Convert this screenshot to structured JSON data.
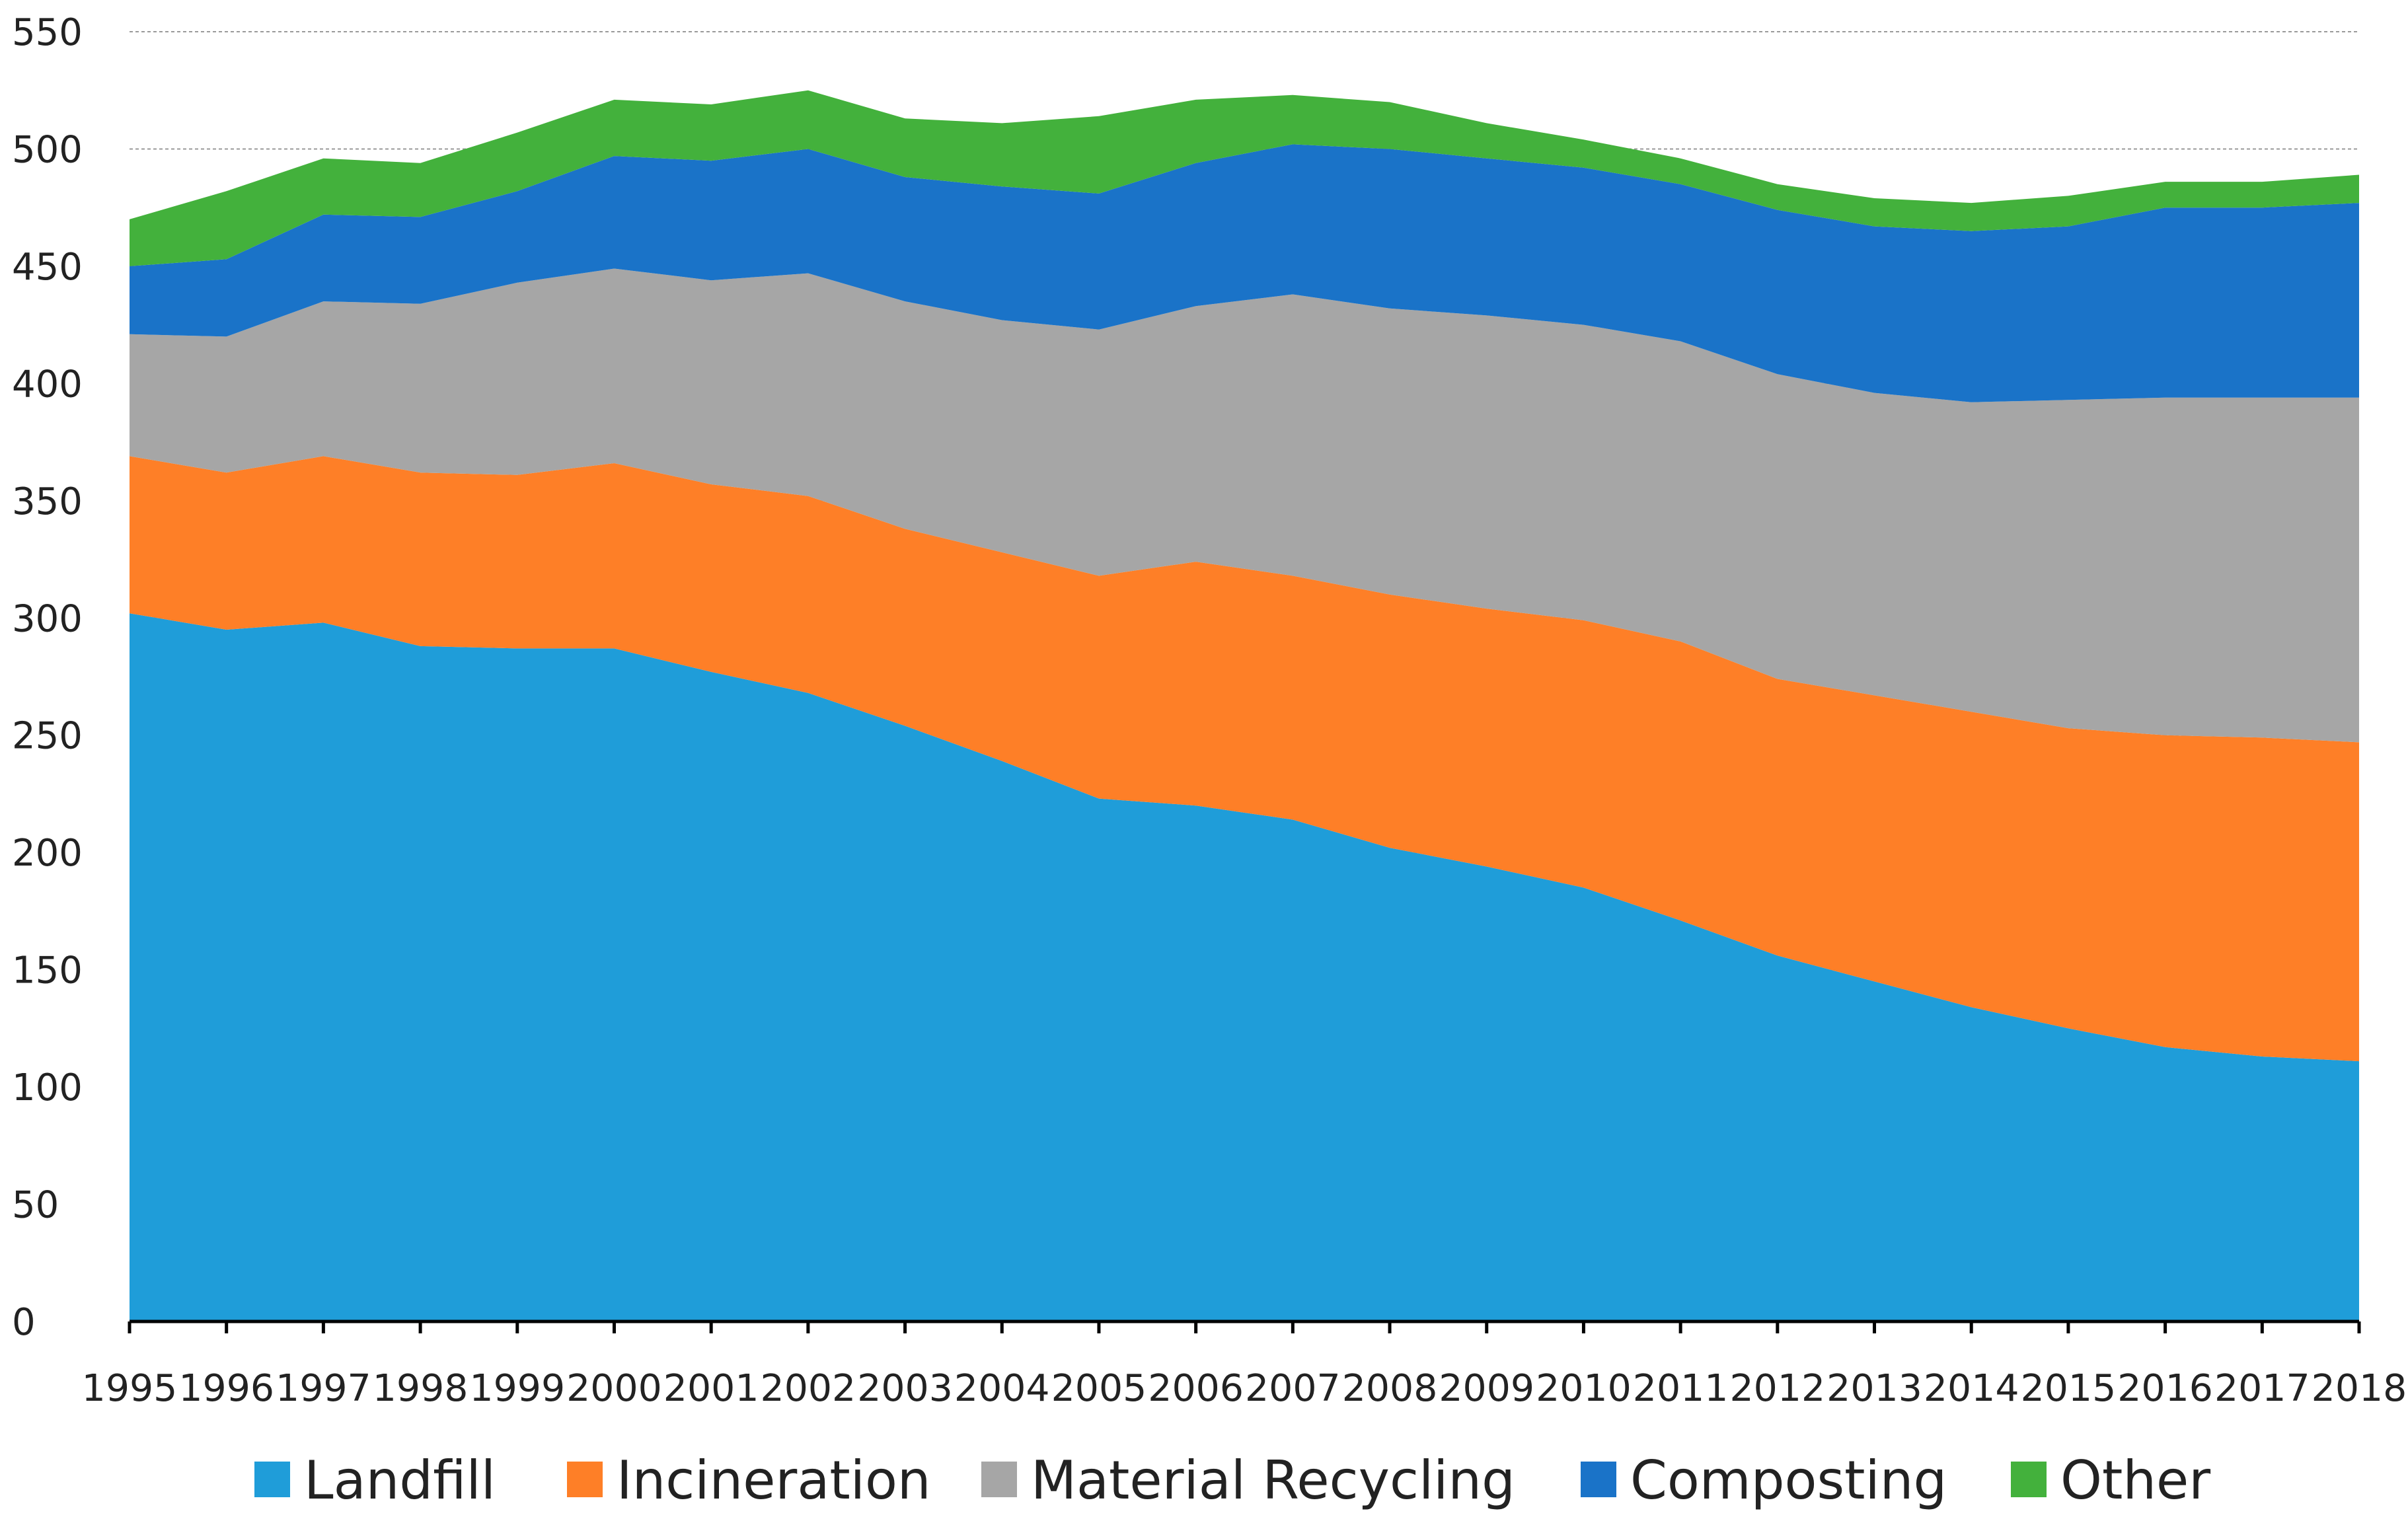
{
  "chart_data": {
    "type": "area",
    "stacked": true,
    "title": "",
    "xlabel": "",
    "ylabel": "",
    "ylim": [
      0,
      550
    ],
    "y_ticks": [
      "0",
      "50",
      "100",
      "150",
      "200",
      "250",
      "300",
      "350",
      "400",
      "450",
      "500",
      "550"
    ],
    "grid": true,
    "legend_position": "bottom",
    "categories": [
      "1995",
      "1996",
      "1997",
      "1998",
      "1999",
      "2000",
      "2001",
      "2002",
      "2003",
      "2004",
      "2005",
      "2006",
      "2007",
      "2008",
      "2009",
      "2010",
      "2011",
      "2012",
      "2013",
      "2014",
      "2015",
      "2016",
      "2017",
      "2018"
    ],
    "series": [
      {
        "name": "Landfill",
        "color": "#1f9dd9",
        "values": [
          302,
          295,
          298,
          288,
          287,
          287,
          277,
          268,
          254,
          239,
          223,
          220,
          214,
          202,
          194,
          185,
          171,
          156,
          145,
          134,
          125,
          117,
          113,
          111
        ]
      },
      {
        "name": "Incineration",
        "color": "#fe7f27",
        "values": [
          67,
          67,
          71,
          74,
          74,
          79,
          80,
          84,
          84,
          89,
          95,
          104,
          104,
          108,
          110,
          114,
          119,
          118,
          122,
          126,
          128,
          133,
          136,
          136
        ]
      },
      {
        "name": "Material Recycling",
        "color": "#a6a6a6",
        "values": [
          52,
          58,
          66,
          72,
          82,
          83,
          87,
          95,
          97,
          99,
          105,
          109,
          120,
          122,
          125,
          126,
          128,
          130,
          129,
          132,
          140,
          144,
          145,
          147
        ]
      },
      {
        "name": "Composting",
        "color": "#1a73c8",
        "values": [
          29,
          33,
          37,
          37,
          39,
          48,
          51,
          53,
          53,
          57,
          58,
          61,
          64,
          68,
          67,
          67,
          67,
          70,
          71,
          73,
          74,
          81,
          81,
          83
        ]
      },
      {
        "name": "Other",
        "color": "#43b13c",
        "values": [
          20,
          29,
          24,
          23,
          25,
          24,
          24,
          25,
          25,
          27,
          33,
          27,
          21,
          20,
          15,
          12,
          11,
          11,
          12,
          12,
          13,
          11,
          11,
          12
        ]
      }
    ]
  }
}
